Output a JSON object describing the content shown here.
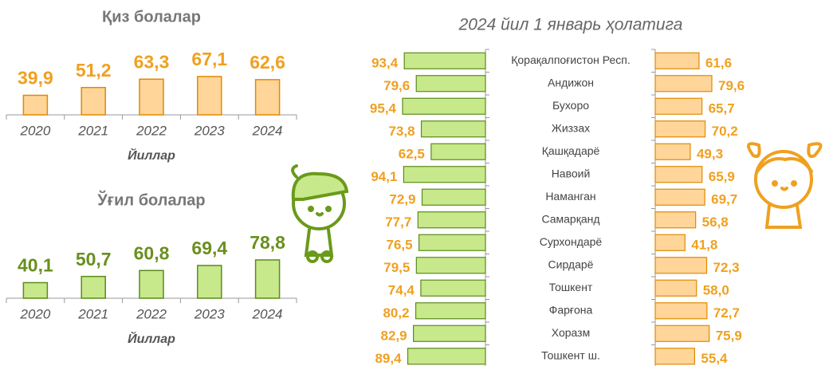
{
  "chart_data": [
    {
      "type": "column",
      "title": "Қиз болалар",
      "x_label": "Йиллар",
      "categories": [
        "2020",
        "2021",
        "2022",
        "2023",
        "2024"
      ],
      "values": [
        39.9,
        51.2,
        63.3,
        67.1,
        62.6
      ],
      "value_labels": [
        "39,9",
        "51,2",
        "63,3",
        "67,1",
        "62,6"
      ],
      "color": "#ffd59a",
      "label_color": "#f0a020"
    },
    {
      "type": "column",
      "title": "Ўғил болалар",
      "x_label": "Йиллар",
      "categories": [
        "2020",
        "2021",
        "2022",
        "2023",
        "2024"
      ],
      "values": [
        40.1,
        50.7,
        60.8,
        69.4,
        78.8
      ],
      "value_labels": [
        "40,1",
        "50,7",
        "60,8",
        "69,4",
        "78,8"
      ],
      "color": "#c8e88c",
      "label_color": "#6a8f1e"
    },
    {
      "type": "butterfly",
      "title": "2024 йил 1 январь ҳолатига",
      "categories": [
        "Қорақалпоғистон Респ.",
        "Андижон",
        "Бухоро",
        "Жиззах",
        "Қашқадарё",
        "Навоий",
        "Наманган",
        "Самарқанд",
        "Сурхондарё",
        "Сирдарё",
        "Тошкент",
        "Фарғона",
        "Хоразм",
        "Тошкент ш."
      ],
      "series": [
        {
          "color": "#c8e88c",
          "values": [
            93.4,
            79.6,
            95.4,
            73.8,
            62.5,
            94.1,
            72.9,
            77.7,
            76.5,
            79.5,
            74.4,
            80.2,
            82.9,
            89.4
          ],
          "value_labels": [
            "93,4",
            "79,6",
            "95,4",
            "73,8",
            "62,5",
            "94,1",
            "72,9",
            "77,7",
            "76,5",
            "79,5",
            "74,4",
            "80,2",
            "82,9",
            "89,4"
          ]
        },
        {
          "color": "#ffd59a",
          "values": [
            61.6,
            79.6,
            65.7,
            70.2,
            49.3,
            65.9,
            69.7,
            56.8,
            41.8,
            72.3,
            58.0,
            72.7,
            75.9,
            55.4
          ],
          "value_labels": [
            "61,6",
            "79,6",
            "65,7",
            "70,2",
            "49,3",
            "65,9",
            "69,7",
            "56,8",
            "41,8",
            "72,3",
            "58,0",
            "72,7",
            "75,9",
            "55,4"
          ]
        }
      ],
      "label_color": "#f0a020"
    }
  ]
}
